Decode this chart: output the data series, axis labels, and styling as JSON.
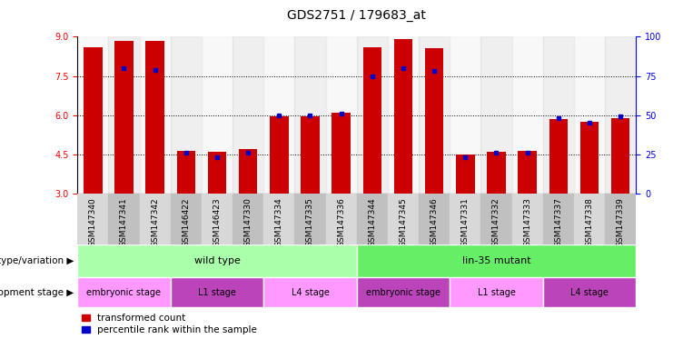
{
  "title": "GDS2751 / 179683_at",
  "samples": [
    "GSM147340",
    "GSM147341",
    "GSM147342",
    "GSM146422",
    "GSM146423",
    "GSM147330",
    "GSM147334",
    "GSM147335",
    "GSM147336",
    "GSM147344",
    "GSM147345",
    "GSM147346",
    "GSM147331",
    "GSM147332",
    "GSM147333",
    "GSM147337",
    "GSM147338",
    "GSM147339"
  ],
  "transformed_count": [
    8.6,
    8.85,
    8.85,
    4.65,
    4.6,
    4.7,
    5.95,
    5.95,
    6.1,
    8.6,
    8.9,
    8.55,
    4.48,
    4.6,
    4.65,
    5.85,
    5.75,
    5.9
  ],
  "percentile_pct": [
    null,
    80,
    79,
    26,
    23,
    26,
    50,
    50,
    51,
    75,
    80,
    78,
    23,
    26,
    26,
    48,
    45,
    49
  ],
  "ylim_left": [
    3,
    9
  ],
  "ylim_right": [
    0,
    100
  ],
  "yticks_left": [
    3,
    4.5,
    6,
    7.5,
    9
  ],
  "yticks_right": [
    0,
    25,
    50,
    75,
    100
  ],
  "hlines": [
    4.5,
    6.0,
    7.5
  ],
  "bar_color": "#cc0000",
  "marker_color": "#0000cc",
  "bar_width": 0.6,
  "groups": [
    {
      "label": "wild type",
      "start": 0,
      "end": 9,
      "color": "#aaffaa"
    },
    {
      "label": "lin-35 mutant",
      "start": 9,
      "end": 18,
      "color": "#66ee66"
    }
  ],
  "stages": [
    {
      "label": "embryonic stage",
      "start": 0,
      "end": 3,
      "color": "#ff88ff"
    },
    {
      "label": "L1 stage",
      "start": 3,
      "end": 6,
      "color": "#cc44cc"
    },
    {
      "label": "L4 stage",
      "start": 6,
      "end": 9,
      "color": "#ff88ff"
    },
    {
      "label": "embryonic stage",
      "start": 9,
      "end": 12,
      "color": "#cc44cc"
    },
    {
      "label": "L1 stage",
      "start": 12,
      "end": 15,
      "color": "#ff88ff"
    },
    {
      "label": "L4 stage",
      "start": 15,
      "end": 18,
      "color": "#cc44cc"
    }
  ],
  "genotype_label": "genotype/variation",
  "stage_label": "development stage",
  "legend_items": [
    "transformed count",
    "percentile rank within the sample"
  ],
  "title_fontsize": 10,
  "tick_fontsize": 6.5,
  "label_fontsize": 8
}
